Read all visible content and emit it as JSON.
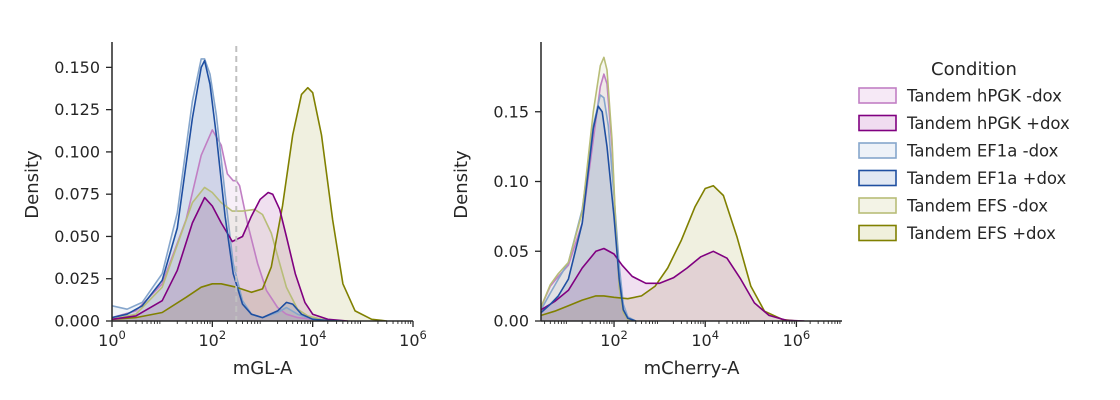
{
  "chart_data": [
    {
      "type": "area",
      "xlabel": "mGL-A",
      "ylabel": "Density",
      "xscale": "log10",
      "xlim": [
        1,
        1000000
      ],
      "ylim": [
        0,
        0.165
      ],
      "x_ticks": [
        {
          "v": 1,
          "m": "10",
          "e": "0"
        },
        {
          "v": 100,
          "m": "10",
          "e": "2"
        },
        {
          "v": 10000,
          "m": "10",
          "e": "4"
        },
        {
          "v": 1000000,
          "m": "10",
          "e": "6"
        }
      ],
      "y_ticks": [
        "0.000",
        "0.025",
        "0.050",
        "0.075",
        "0.100",
        "0.125",
        "0.150"
      ],
      "reference_line": {
        "x": 300,
        "style": "dashed",
        "color": "#c0c0c0"
      },
      "series": [
        {
          "name": "Tandem hPGK -dox",
          "x": [
            1,
            3,
            10,
            30,
            60,
            100,
            150,
            200,
            260,
            300,
            350,
            500,
            800,
            1200,
            2000,
            3000,
            5000,
            10000,
            30000
          ],
          "y": [
            0.002,
            0.006,
            0.022,
            0.06,
            0.098,
            0.113,
            0.104,
            0.087,
            0.083,
            0.083,
            0.08,
            0.058,
            0.034,
            0.018,
            0.008,
            0.004,
            0.002,
            0.001,
            0
          ]
        },
        {
          "name": "Tandem hPGK +dox",
          "x": [
            1,
            3,
            10,
            20,
            40,
            70,
            100,
            150,
            250,
            400,
            600,
            900,
            1300,
            1600,
            2200,
            3000,
            4500,
            7000,
            10000,
            20000,
            50000
          ],
          "y": [
            0.001,
            0.003,
            0.012,
            0.03,
            0.058,
            0.073,
            0.068,
            0.058,
            0.047,
            0.05,
            0.062,
            0.072,
            0.076,
            0.075,
            0.066,
            0.05,
            0.028,
            0.011,
            0.004,
            0.001,
            0
          ]
        },
        {
          "name": "Tandem EF1a -dox",
          "x": [
            1,
            2,
            4,
            10,
            20,
            40,
            60,
            70,
            90,
            120,
            180,
            260,
            400,
            600,
            1000,
            2000,
            3000,
            5000,
            8000,
            15000,
            30000
          ],
          "y": [
            0.009,
            0.007,
            0.011,
            0.028,
            0.064,
            0.13,
            0.155,
            0.155,
            0.146,
            0.122,
            0.075,
            0.034,
            0.012,
            0.004,
            0.002,
            0.005,
            0.008,
            0.004,
            0.002,
            0.0005,
            0
          ]
        },
        {
          "name": "Tandem EF1a +dox",
          "x": [
            1,
            2,
            4,
            10,
            20,
            40,
            60,
            70,
            90,
            120,
            180,
            260,
            400,
            600,
            1000,
            2000,
            3000,
            4000,
            6000,
            10000,
            20000,
            40000
          ],
          "y": [
            0.002,
            0.004,
            0.009,
            0.024,
            0.055,
            0.12,
            0.15,
            0.154,
            0.14,
            0.11,
            0.062,
            0.028,
            0.01,
            0.004,
            0.002,
            0.006,
            0.011,
            0.01,
            0.004,
            0.001,
            0.0003,
            0
          ]
        },
        {
          "name": "Tandem EFS -dox",
          "x": [
            1,
            3,
            10,
            20,
            40,
            70,
            100,
            150,
            250,
            400,
            700,
            1000,
            1500,
            2200,
            3000,
            5000,
            8000,
            15000,
            40000
          ],
          "y": [
            0.001,
            0.004,
            0.02,
            0.045,
            0.07,
            0.079,
            0.076,
            0.07,
            0.065,
            0.065,
            0.066,
            0.063,
            0.052,
            0.034,
            0.02,
            0.007,
            0.003,
            0.001,
            0
          ]
        },
        {
          "name": "Tandem EFS +dox",
          "x": [
            1,
            3,
            10,
            30,
            60,
            100,
            150,
            300,
            600,
            1000,
            1500,
            2500,
            4000,
            6000,
            8000,
            10000,
            15000,
            25000,
            40000,
            70000,
            150000,
            300000
          ],
          "y": [
            0.001,
            0.002,
            0.005,
            0.014,
            0.02,
            0.022,
            0.022,
            0.02,
            0.017,
            0.019,
            0.032,
            0.068,
            0.11,
            0.134,
            0.138,
            0.135,
            0.11,
            0.06,
            0.022,
            0.006,
            0.001,
            0
          ]
        }
      ]
    },
    {
      "type": "area",
      "xlabel": "mCherry-A",
      "ylabel": "Density",
      "xscale": "log10",
      "xlim": [
        2.5,
        10000000
      ],
      "ylim": [
        0,
        0.2
      ],
      "x_ticks": [
        {
          "v": 100,
          "m": "10",
          "e": "2"
        },
        {
          "v": 10000,
          "m": "10",
          "e": "4"
        },
        {
          "v": 1000000,
          "m": "10",
          "e": "6"
        }
      ],
      "y_ticks": [
        "0.00",
        "0.05",
        "0.10",
        "0.15"
      ],
      "series": [
        {
          "name": "Tandem hPGK -dox",
          "x": [
            2.5,
            4,
            6,
            10,
            20,
            35,
            50,
            60,
            70,
            90,
            110,
            130,
            160,
            200,
            300
          ],
          "y": [
            0.01,
            0.025,
            0.032,
            0.04,
            0.07,
            0.13,
            0.168,
            0.177,
            0.17,
            0.125,
            0.065,
            0.025,
            0.006,
            0.001,
            0
          ]
        },
        {
          "name": "Tandem hPGK +dox",
          "x": [
            2.5,
            5,
            10,
            20,
            40,
            60,
            100,
            150,
            250,
            500,
            1000,
            2000,
            4000,
            8000,
            15000,
            30000,
            60000,
            120000,
            250000,
            600000,
            1500000
          ],
          "y": [
            0.008,
            0.014,
            0.022,
            0.038,
            0.05,
            0.052,
            0.048,
            0.04,
            0.032,
            0.027,
            0.027,
            0.031,
            0.038,
            0.046,
            0.05,
            0.045,
            0.03,
            0.013,
            0.004,
            0.0005,
            0
          ]
        },
        {
          "name": "Tandem EF1a -dox",
          "x": [
            2.5,
            4,
            6,
            10,
            20,
            35,
            50,
            60,
            75,
            100,
            130,
            160,
            200,
            300
          ],
          "y": [
            0.008,
            0.02,
            0.03,
            0.042,
            0.08,
            0.14,
            0.162,
            0.16,
            0.14,
            0.09,
            0.04,
            0.012,
            0.003,
            0
          ]
        },
        {
          "name": "Tandem EF1a +dox",
          "x": [
            2.5,
            4,
            6,
            10,
            20,
            35,
            45,
            55,
            70,
            100,
            130,
            160,
            200,
            300
          ],
          "y": [
            0.006,
            0.012,
            0.018,
            0.03,
            0.07,
            0.138,
            0.154,
            0.15,
            0.125,
            0.075,
            0.03,
            0.008,
            0.002,
            0
          ]
        },
        {
          "name": "Tandem EFS -dox",
          "x": [
            2.5,
            4,
            6,
            10,
            20,
            35,
            50,
            60,
            70,
            90,
            110,
            130,
            160,
            200,
            300
          ],
          "y": [
            0.01,
            0.026,
            0.034,
            0.042,
            0.078,
            0.15,
            0.183,
            0.189,
            0.18,
            0.13,
            0.065,
            0.024,
            0.006,
            0.001,
            0
          ]
        },
        {
          "name": "Tandem EFS +dox",
          "x": [
            2.5,
            5,
            10,
            20,
            40,
            60,
            100,
            200,
            400,
            800,
            1500,
            3000,
            6000,
            10000,
            15000,
            25000,
            50000,
            100000,
            200000,
            500000,
            1000000
          ],
          "y": [
            0.004,
            0.007,
            0.011,
            0.015,
            0.018,
            0.018,
            0.017,
            0.016,
            0.018,
            0.025,
            0.038,
            0.058,
            0.082,
            0.095,
            0.097,
            0.09,
            0.06,
            0.025,
            0.007,
            0.001,
            0
          ]
        }
      ]
    }
  ],
  "legend": {
    "title": "Condition",
    "items": [
      {
        "label": "Tandem hPGK -dox",
        "color": "#c17fc4",
        "fill": "#f6e9f6"
      },
      {
        "label": "Tandem hPGK +dox",
        "color": "#800080",
        "fill": "#f0dcf0"
      },
      {
        "label": "Tandem EF1a -dox",
        "color": "#86a6cc",
        "fill": "#eef2f8"
      },
      {
        "label": "Tandem EF1a +dox",
        "color": "#1f4fa1",
        "fill": "#e1e8f3"
      },
      {
        "label": "Tandem EFS -dox",
        "color": "#b8bd78",
        "fill": "#f3f3e6"
      },
      {
        "label": "Tandem EFS +dox",
        "color": "#808000",
        "fill": "#f0f0dc"
      }
    ]
  }
}
